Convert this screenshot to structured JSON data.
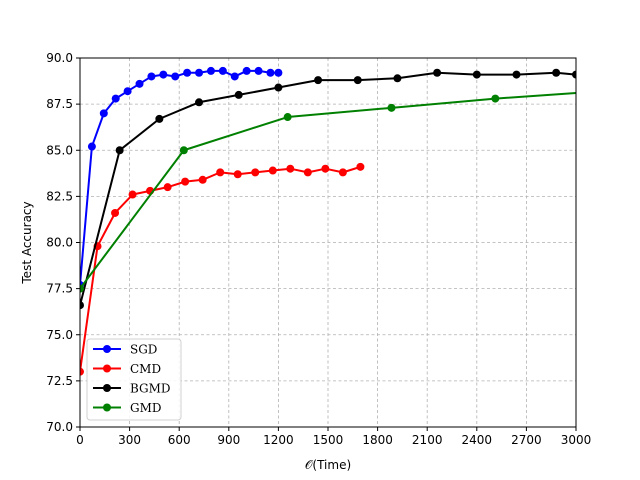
{
  "chart_data": {
    "type": "line",
    "title": "",
    "xlabel": "𝒪(Time)",
    "ylabel": "Test Accuracy",
    "xlim": [
      0,
      3000
    ],
    "ylim": [
      70,
      90
    ],
    "xticks": [
      0,
      300,
      600,
      900,
      1200,
      1500,
      1800,
      2100,
      2400,
      2700,
      3000
    ],
    "yticks": [
      70.0,
      72.5,
      75.0,
      77.5,
      80.0,
      82.5,
      85.0,
      87.5,
      90.0
    ],
    "xtick_labels": [
      "0",
      "300",
      "600",
      "900",
      "1200",
      "1500",
      "1800",
      "2100",
      "2400",
      "2700",
      "3000"
    ],
    "ytick_labels": [
      "70.0",
      "72.5",
      "75.0",
      "77.5",
      "80.0",
      "82.5",
      "85.0",
      "87.5",
      "90.0"
    ],
    "grid": true,
    "legend_position": "lower-left",
    "series": [
      {
        "name": "SGD",
        "color": "#0000ff",
        "x": [
          0,
          72,
          144,
          216,
          288,
          360,
          432,
          504,
          576,
          648,
          720,
          792,
          864,
          936,
          1008,
          1080,
          1152,
          1200
        ],
        "y": [
          77.7,
          85.2,
          87.0,
          87.8,
          88.2,
          88.6,
          89.0,
          89.1,
          89.0,
          89.2,
          89.2,
          89.3,
          89.3,
          89.0,
          89.3,
          89.3,
          89.2,
          89.2
        ]
      },
      {
        "name": "CMD",
        "color": "#ff0000",
        "x": [
          0,
          106,
          212,
          318,
          424,
          530,
          636,
          742,
          848,
          954,
          1060,
          1166,
          1272,
          1378,
          1484,
          1590,
          1696
        ],
        "y": [
          73.0,
          79.8,
          81.6,
          82.6,
          82.8,
          83.0,
          83.3,
          83.4,
          83.8,
          83.7,
          83.8,
          83.9,
          84.0,
          83.8,
          84.0,
          83.8,
          84.1
        ]
      },
      {
        "name": "BGMD",
        "color": "#000000",
        "x": [
          0,
          240,
          480,
          720,
          960,
          1200,
          1440,
          1680,
          1920,
          2160,
          2400,
          2640,
          2880,
          3000
        ],
        "y": [
          76.6,
          85.0,
          86.7,
          87.6,
          88.0,
          88.4,
          88.8,
          88.8,
          88.9,
          89.2,
          89.1,
          89.1,
          89.2,
          89.1
        ]
      },
      {
        "name": "GMD",
        "color": "#008000",
        "x": [
          0,
          628,
          1256,
          1884,
          2512,
          3000
        ],
        "y": [
          77.5,
          85.0,
          86.8,
          87.3,
          87.8,
          88.1
        ],
        "markers_drawn": [
          true,
          true,
          true,
          true,
          true,
          false
        ]
      }
    ]
  }
}
